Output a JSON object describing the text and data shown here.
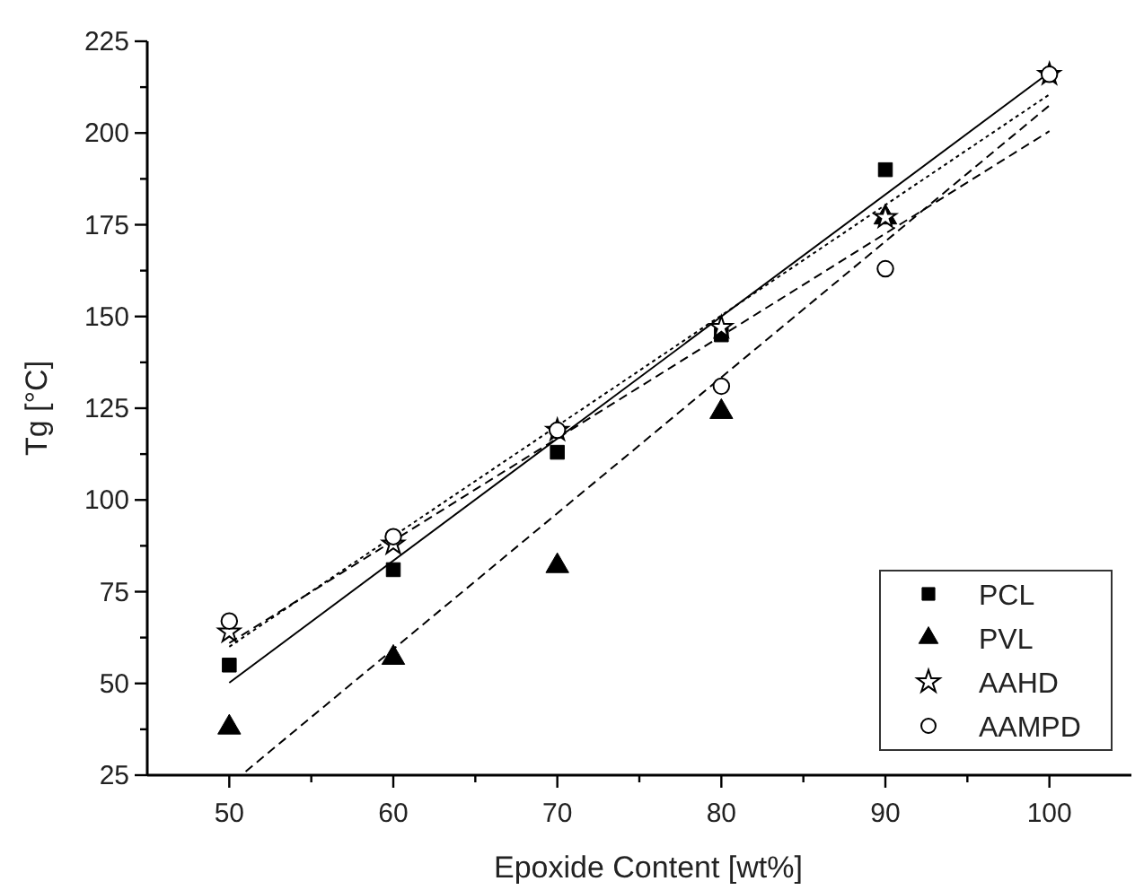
{
  "chart_data": {
    "type": "scatter",
    "xlabel": "Epoxide Content [wt%]",
    "ylabel": "Tg [°C]",
    "x": [
      50,
      60,
      70,
      80,
      90,
      100
    ],
    "xlim": [
      45,
      105
    ],
    "xticks": [
      50,
      {
        "value": 55,
        "label": null
      },
      60,
      {
        "value": 65,
        "label": null
      },
      70,
      {
        "value": 75,
        "label": null
      },
      80,
      {
        "value": 85,
        "label": null
      },
      90,
      {
        "value": 95,
        "label": null
      },
      100
    ],
    "ylim": [
      25,
      225
    ],
    "yticks": [
      25,
      {
        "value": 37.5,
        "label": null
      },
      50,
      {
        "value": 62.5,
        "label": null
      },
      75,
      {
        "value": 87.5,
        "label": null
      },
      100,
      {
        "value": 112.5,
        "label": null
      },
      125,
      {
        "value": 137.5,
        "label": null
      },
      150,
      {
        "value": 162.5,
        "label": null
      },
      175,
      {
        "value": 187.5,
        "label": null
      },
      200,
      {
        "value": 212.5,
        "label": null
      },
      225
    ],
    "grid": false,
    "legend": "bottom right",
    "series": [
      {
        "name": "PCL",
        "color": "#000000",
        "marker": "square",
        "values": [
          55,
          81,
          113,
          145,
          190,
          null
        ]
      },
      {
        "name": "PVL",
        "color": "#000000",
        "marker": "triangle",
        "values": [
          38,
          57,
          82,
          124,
          177,
          null
        ]
      },
      {
        "name": "AAHD",
        "color": "#000000",
        "marker": "star",
        "values": [
          64,
          88,
          119,
          147,
          177,
          216
        ]
      },
      {
        "name": "AAMPD",
        "color": "#000000",
        "marker": "circle",
        "values": [
          67,
          90,
          119,
          131,
          163,
          216
        ]
      },
      {
        "type": "line",
        "color": "#000000",
        "line_style": "solid",
        "x": [
          50,
          100
        ],
        "values": [
          50.2,
          216.5
        ]
      },
      {
        "type": "line",
        "color": "#000000",
        "line_style": "dashed",
        "x": [
          51,
          100
        ],
        "values": [
          26,
          207.5
        ]
      },
      {
        "type": "line",
        "color": "#000000",
        "line_style": "dotted",
        "x": [
          50,
          100
        ],
        "values": [
          60,
          210.5
        ]
      },
      {
        "type": "line",
        "color": "#000000",
        "line_style": "dashed",
        "x": [
          50,
          100
        ],
        "values": [
          61,
          200.5
        ]
      }
    ]
  }
}
